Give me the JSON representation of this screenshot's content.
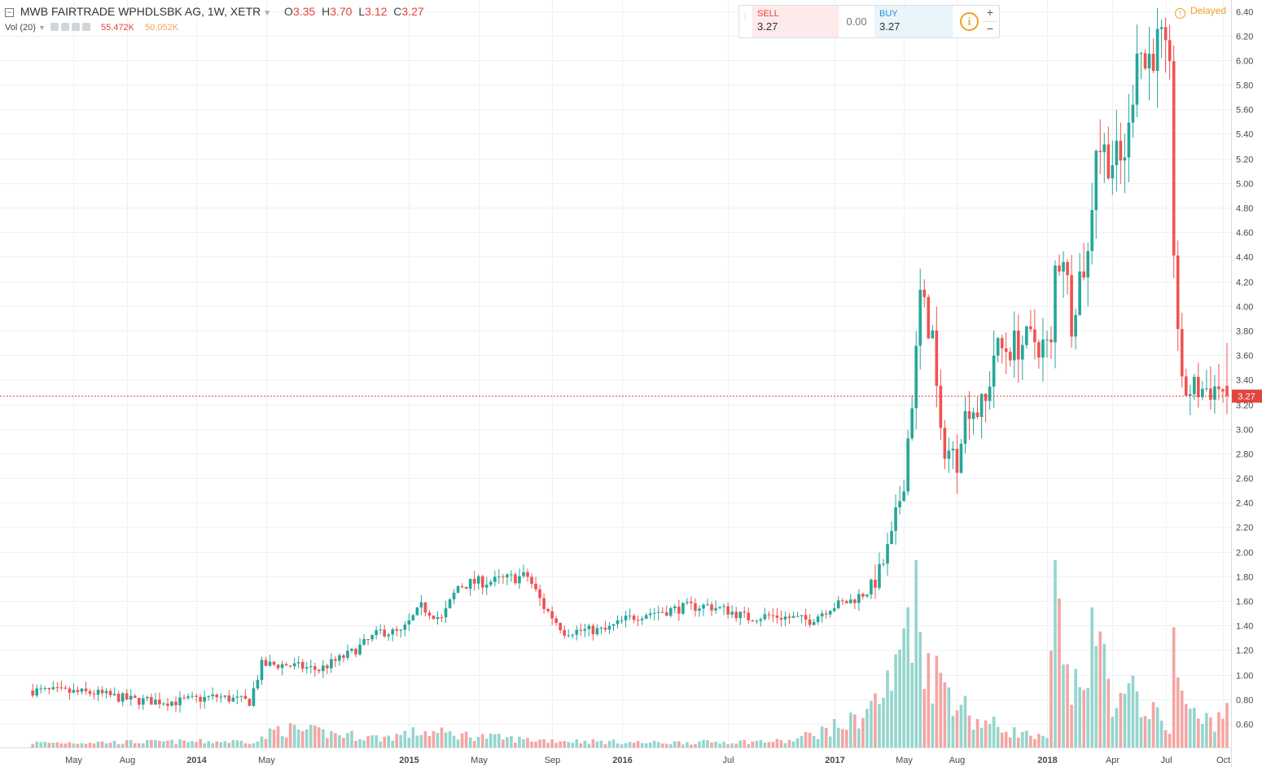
{
  "header": {
    "collapse_icon": "minus-square-icon",
    "symbol": "MWB FAIRTRADE WPHDLSBK AG, 1W, XETR",
    "o_label": "O",
    "o_value": "3.35",
    "h_label": "H",
    "h_value": "3.70",
    "l_label": "L",
    "l_value": "3.12",
    "c_label": "C",
    "c_value": "3.27"
  },
  "volume": {
    "label": "Vol (20)",
    "value1": "55.472K",
    "value2": "50.052K",
    "icons": [
      "eye-icon",
      "gear-icon",
      "plus-icon",
      "close-icon"
    ]
  },
  "trade_panel": {
    "sell_label": "SELL",
    "sell_price": "3.27",
    "spread": "0.00",
    "buy_label": "BUY",
    "buy_price": "3.27",
    "info_icon": "i",
    "plus": "+",
    "minus": "−"
  },
  "delayed_label": "Delayed",
  "last_price_label": "3.27",
  "colors": {
    "up": "#26a69a",
    "down": "#ef5350",
    "up_volume": "#95d5cd",
    "down_volume": "#f4a5a3",
    "grid": "#eef0f2",
    "last_price": "#e2453d"
  },
  "chart_data": {
    "type": "candlestick",
    "interval": "1W",
    "y_ticks": [
      "0.60",
      "0.80",
      "1.00",
      "1.20",
      "1.40",
      "1.60",
      "1.80",
      "2.00",
      "2.20",
      "2.40",
      "2.60",
      "2.80",
      "3.00",
      "3.20",
      "3.40",
      "3.60",
      "3.80",
      "4.00",
      "4.20",
      "4.40",
      "4.60",
      "4.80",
      "5.00",
      "5.20",
      "5.40",
      "5.60",
      "5.80",
      "6.00",
      "6.20",
      "6.40"
    ],
    "ylim": [
      0.5,
      6.45
    ],
    "x_ticks": [
      {
        "label": "May",
        "w": 10
      },
      {
        "label": "Aug",
        "w": 23
      },
      {
        "label": "2014",
        "w": 40
      },
      {
        "label": "May",
        "w": 57
      },
      {
        "label": "2015",
        "w": 92
      },
      {
        "label": "May",
        "w": 109
      },
      {
        "label": "Sep",
        "w": 127
      },
      {
        "label": "2016",
        "w": 144
      },
      {
        "label": "Jul",
        "w": 170
      },
      {
        "label": "2017",
        "w": 196
      },
      {
        "label": "May",
        "w": 213
      },
      {
        "label": "Aug",
        "w": 226
      },
      {
        "label": "2018",
        "w": 248
      },
      {
        "label": "Apr",
        "w": 264
      },
      {
        "label": "Jul",
        "w": 277
      },
      {
        "label": "Oct",
        "w": 291
      }
    ],
    "x_range_weeks": [
      -8,
      293
    ],
    "anchors": [
      [
        0,
        0.87
      ],
      [
        15,
        0.85
      ],
      [
        25,
        0.79
      ],
      [
        35,
        0.78
      ],
      [
        45,
        0.82
      ],
      [
        53,
        0.78
      ],
      [
        56,
        1.08
      ],
      [
        62,
        1.08
      ],
      [
        70,
        1.04
      ],
      [
        78,
        1.18
      ],
      [
        85,
        1.35
      ],
      [
        90,
        1.34
      ],
      [
        95,
        1.55
      ],
      [
        100,
        1.45
      ],
      [
        104,
        1.72
      ],
      [
        108,
        1.75
      ],
      [
        113,
        1.76
      ],
      [
        118,
        1.79
      ],
      [
        121,
        1.8
      ],
      [
        125,
        1.55
      ],
      [
        130,
        1.35
      ],
      [
        135,
        1.36
      ],
      [
        140,
        1.36
      ],
      [
        145,
        1.45
      ],
      [
        150,
        1.5
      ],
      [
        155,
        1.52
      ],
      [
        160,
        1.55
      ],
      [
        165,
        1.56
      ],
      [
        170,
        1.52
      ],
      [
        175,
        1.46
      ],
      [
        180,
        1.48
      ],
      [
        186,
        1.46
      ],
      [
        190,
        1.44
      ],
      [
        195,
        1.55
      ],
      [
        200,
        1.6
      ],
      [
        204,
        1.68
      ],
      [
        207,
        1.82
      ],
      [
        210,
        2.1
      ],
      [
        213,
        2.6
      ],
      [
        215,
        3.25
      ],
      [
        216,
        3.6
      ],
      [
        217,
        4.08
      ],
      [
        218,
        3.95
      ],
      [
        219,
        3.86
      ],
      [
        220,
        3.75
      ],
      [
        221,
        3.3
      ],
      [
        222,
        2.9
      ],
      [
        224,
        2.82
      ],
      [
        226,
        2.75
      ],
      [
        227,
        3.0
      ],
      [
        229,
        3.2
      ],
      [
        231,
        3.15
      ],
      [
        233,
        3.2
      ],
      [
        235,
        3.62
      ],
      [
        240,
        3.68
      ],
      [
        245,
        3.72
      ],
      [
        249,
        3.64
      ],
      [
        250,
        4.3
      ],
      [
        252,
        4.45
      ],
      [
        254,
        3.9
      ],
      [
        256,
        4.25
      ],
      [
        258,
        4.4
      ],
      [
        260,
        5.35
      ],
      [
        262,
        5.25
      ],
      [
        264,
        5.2
      ],
      [
        266,
        5.15
      ],
      [
        268,
        5.4
      ],
      [
        270,
        6.2
      ],
      [
        272,
        5.95
      ],
      [
        274,
        6.1
      ],
      [
        276,
        6.12
      ],
      [
        278,
        5.8
      ],
      [
        279,
        4.5
      ],
      [
        280,
        3.85
      ],
      [
        281,
        3.3
      ],
      [
        283,
        3.32
      ],
      [
        285,
        3.32
      ],
      [
        290,
        3.34
      ],
      [
        292,
        3.27
      ]
    ],
    "volume_anchors": [
      [
        0,
        0.3
      ],
      [
        55,
        0.4
      ],
      [
        60,
        1.2
      ],
      [
        85,
        0.6
      ],
      [
        95,
        1.0
      ],
      [
        120,
        0.5
      ],
      [
        150,
        0.3
      ],
      [
        185,
        0.4
      ],
      [
        200,
        1.6
      ],
      [
        207,
        3.1
      ],
      [
        211,
        4.6
      ],
      [
        214,
        9.0
      ],
      [
        216,
        10.0
      ],
      [
        218,
        6.5
      ],
      [
        220,
        4.8
      ],
      [
        225,
        3.6
      ],
      [
        230,
        1.8
      ],
      [
        240,
        1.0
      ],
      [
        248,
        0.5
      ],
      [
        250,
        10.0
      ],
      [
        252,
        4.5
      ],
      [
        255,
        3.5
      ],
      [
        258,
        5.5
      ],
      [
        260,
        7.0
      ],
      [
        262,
        5.5
      ],
      [
        265,
        2.5
      ],
      [
        270,
        3.5
      ],
      [
        275,
        1.8
      ],
      [
        278,
        1.5
      ],
      [
        279,
        5.8
      ],
      [
        280,
        4.5
      ],
      [
        282,
        2.8
      ],
      [
        285,
        1.6
      ],
      [
        292,
        2.0
      ]
    ],
    "volume_max": 12.0
  }
}
